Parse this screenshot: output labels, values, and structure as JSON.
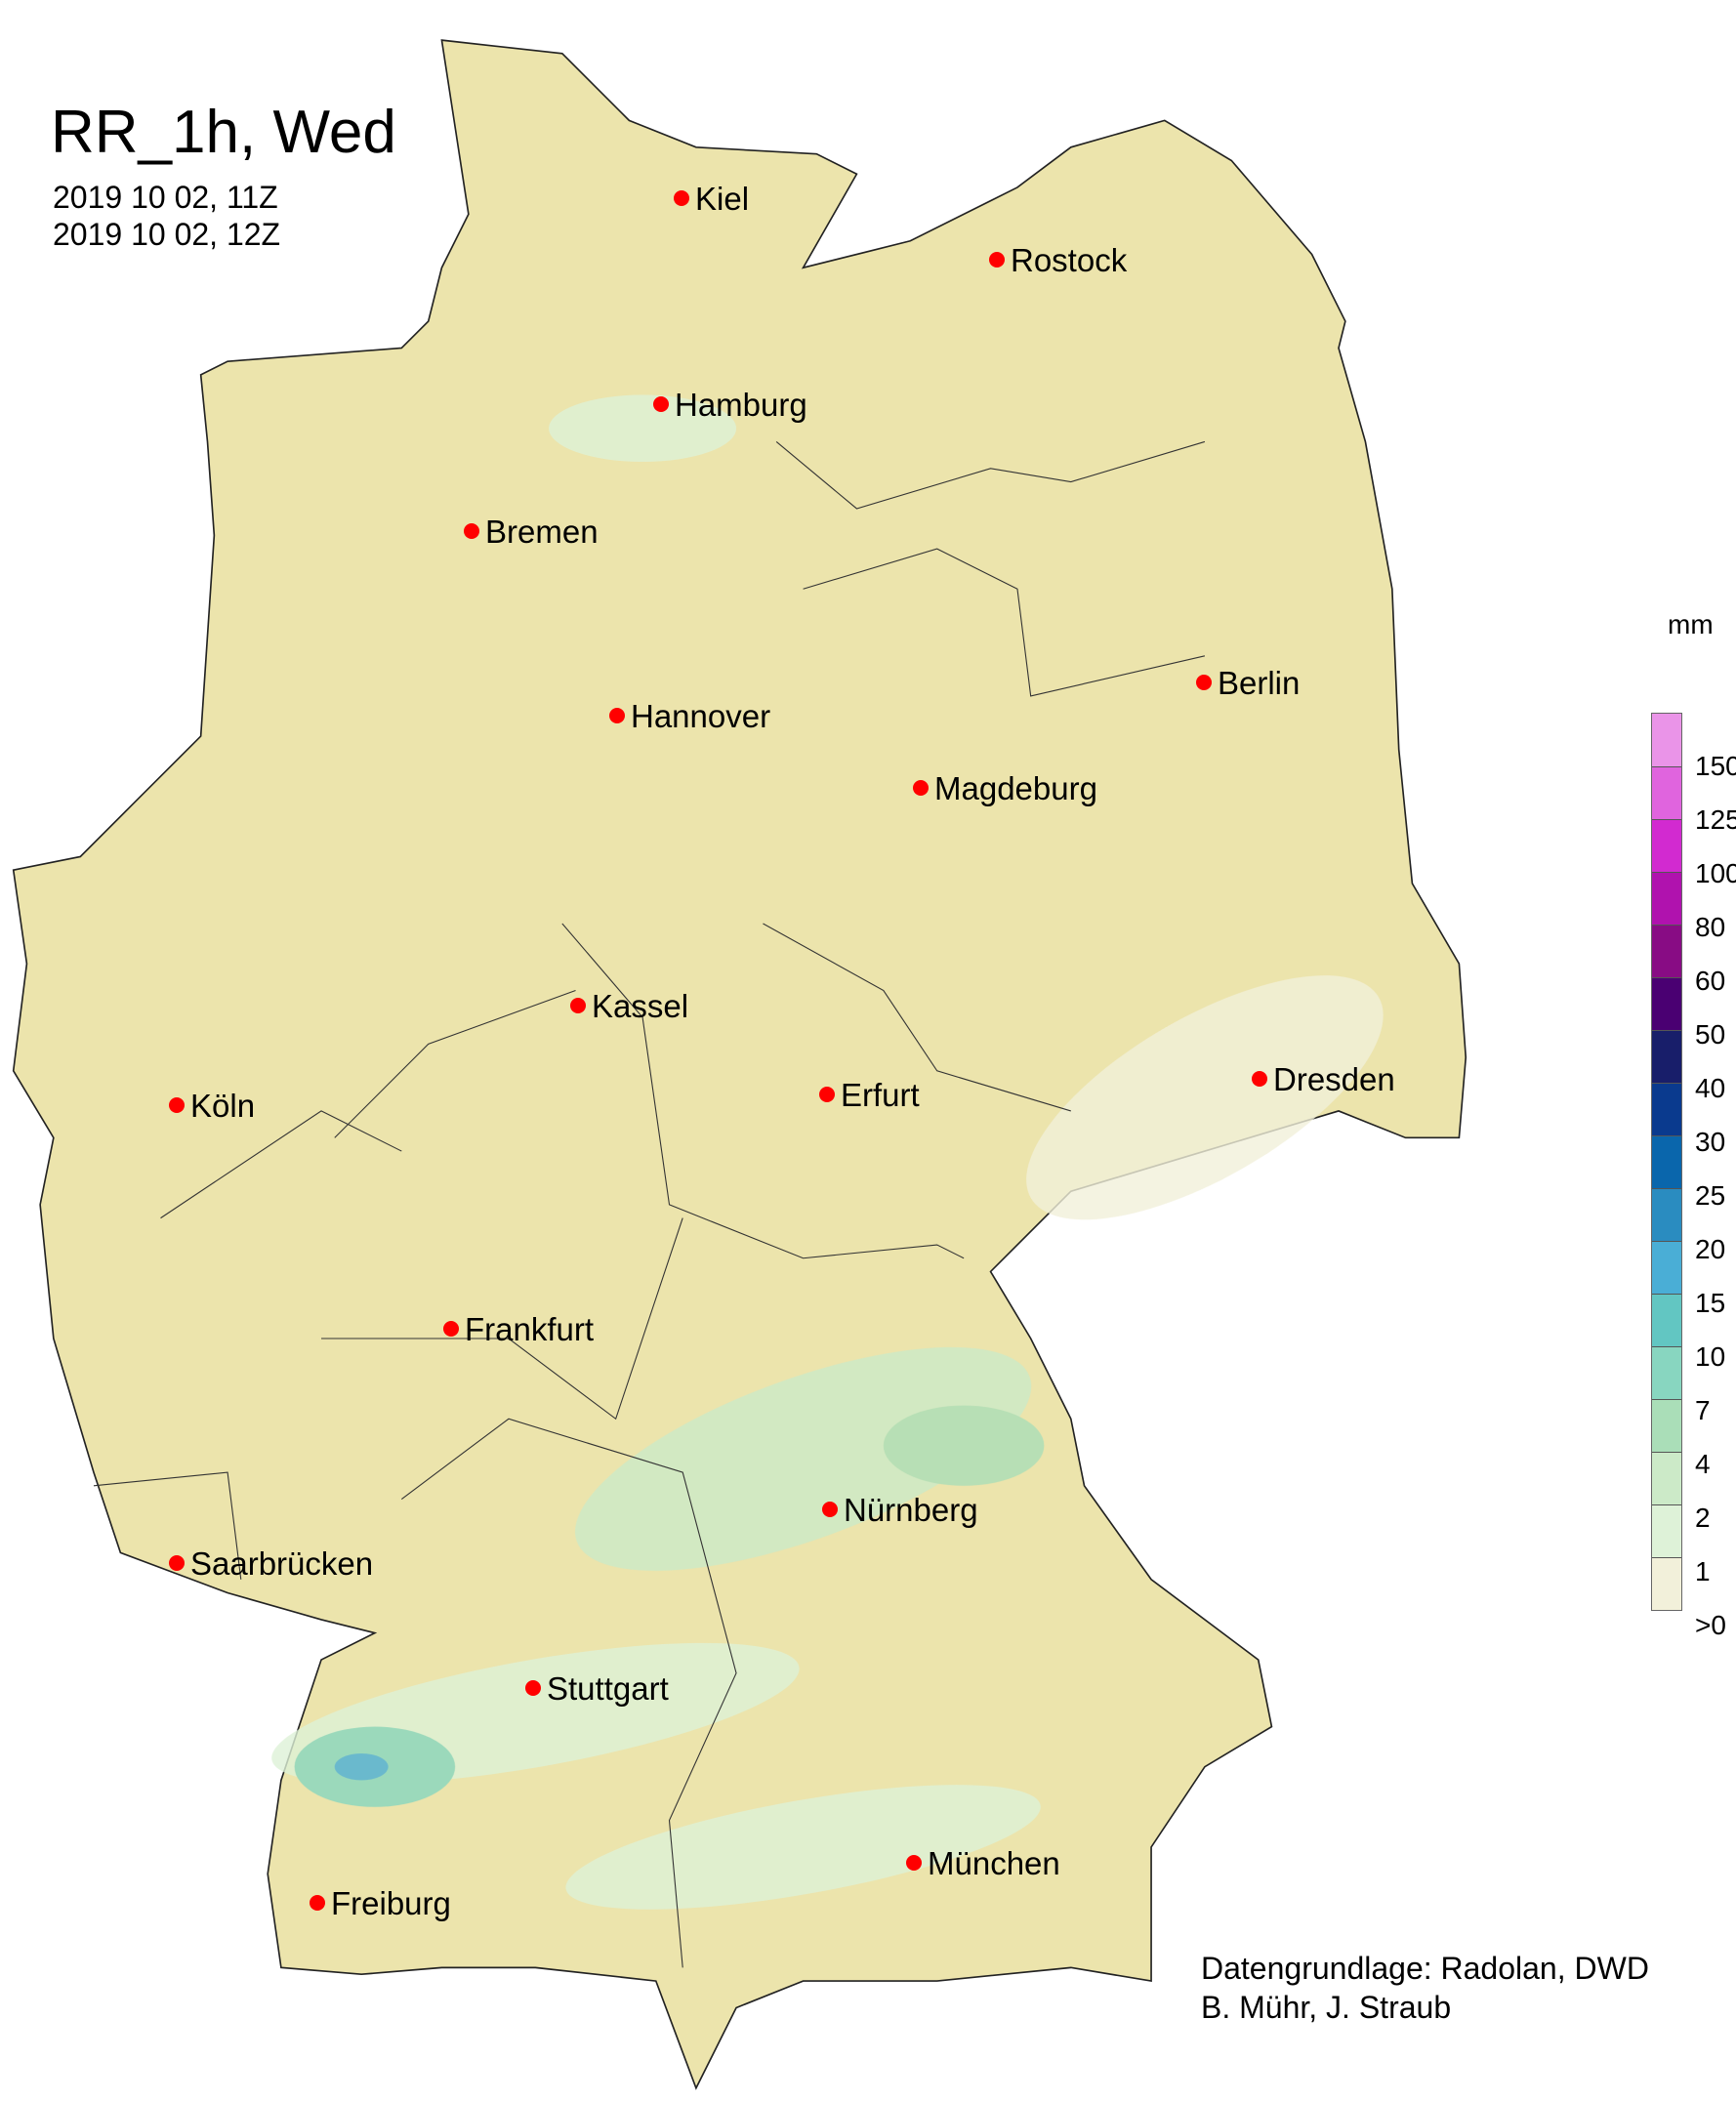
{
  "title": "RR_1h, Wed",
  "time_start": "2019 10 02, 11Z",
  "time_end": "2019 10 02, 12Z",
  "legend": {
    "unit": "mm",
    "labels": [
      "150",
      "125",
      "100",
      "80",
      "60",
      "50",
      "40",
      "30",
      "25",
      "20",
      "15",
      "10",
      "7",
      "4",
      "2",
      "1",
      ">0"
    ],
    "colors": [
      "#ea94e8",
      "#e064de",
      "#d22ad0",
      "#b012ae",
      "#880c84",
      "#4a0072",
      "#181e6a",
      "#0a3a8e",
      "#0a66ac",
      "#2a8cc0",
      "#4aaed6",
      "#62c6c2",
      "#88d6c0",
      "#aadeb8",
      "#cceac8",
      "#def2d8",
      "#f2f0da"
    ]
  },
  "land_color": "#ece4ac",
  "marker_color": "#ff0000",
  "cities": [
    {
      "name": "Kiel"
    },
    {
      "name": "Rostock"
    },
    {
      "name": "Hamburg"
    },
    {
      "name": "Bremen"
    },
    {
      "name": "Berlin"
    },
    {
      "name": "Hannover"
    },
    {
      "name": "Magdeburg"
    },
    {
      "name": "Kassel"
    },
    {
      "name": "Köln"
    },
    {
      "name": "Erfurt"
    },
    {
      "name": "Dresden"
    },
    {
      "name": "Frankfurt"
    },
    {
      "name": "Nürnberg"
    },
    {
      "name": "Saarbrücken"
    },
    {
      "name": "Stuttgart"
    },
    {
      "name": "München"
    },
    {
      "name": "Freiburg"
    }
  ],
  "credit_line1": "Datengrundlage: Radolan, DWD",
  "credit_line2": "B. Mühr, J. Straub"
}
